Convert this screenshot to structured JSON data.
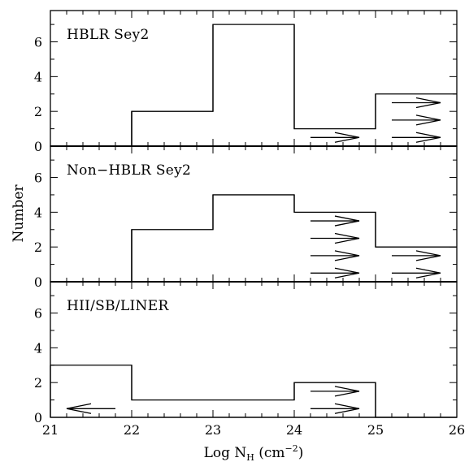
{
  "chart_data": [
    {
      "type": "bar",
      "label": "HBLR Sey2",
      "bins": [
        [
          21,
          22
        ],
        [
          22,
          23
        ],
        [
          23,
          24
        ],
        [
          24,
          25
        ],
        [
          25,
          26
        ]
      ],
      "values": [
        0,
        2,
        7,
        1,
        3
      ],
      "arrows": [
        {
          "bin": 3,
          "direction": "right",
          "y": [
            0.5
          ]
        },
        {
          "bin": 4,
          "direction": "right",
          "y": [
            0.5,
            1.5,
            2.5
          ]
        }
      ],
      "ylim": [
        0,
        7.8
      ],
      "yticks": [
        0,
        2,
        4,
        6
      ]
    },
    {
      "type": "bar",
      "label": "Non−HBLR Sey2",
      "bins": [
        [
          21,
          22
        ],
        [
          22,
          23
        ],
        [
          23,
          24
        ],
        [
          24,
          25
        ],
        [
          25,
          26
        ]
      ],
      "values": [
        0,
        3,
        5,
        4,
        2
      ],
      "arrows": [
        {
          "bin": 3,
          "direction": "right",
          "y": [
            0.5,
            1.5,
            2.5,
            3.5
          ]
        },
        {
          "bin": 4,
          "direction": "right",
          "y": [
            0.5,
            1.5
          ]
        }
      ],
      "ylim": [
        0,
        7.8
      ],
      "yticks": [
        0,
        2,
        4,
        6
      ]
    },
    {
      "type": "bar",
      "label": "HII/SB/LINER",
      "bins": [
        [
          21,
          22
        ],
        [
          22,
          23
        ],
        [
          23,
          24
        ],
        [
          24,
          25
        ],
        [
          25,
          26
        ]
      ],
      "values": [
        3,
        1,
        1,
        2,
        0
      ],
      "arrows": [
        {
          "bin": 0,
          "direction": "left",
          "y": [
            0.5
          ]
        },
        {
          "bin": 3,
          "direction": "right",
          "y": [
            0.5,
            1.5
          ]
        }
      ],
      "ylim": [
        0,
        7.8
      ],
      "yticks": [
        0,
        2,
        4,
        6
      ]
    }
  ],
  "axes": {
    "xlim": [
      21,
      26
    ],
    "xticks": [
      "21",
      "22",
      "23",
      "24",
      "25",
      "26"
    ],
    "xlabel": "Log N",
    "xlabel_sub": "H",
    "xlabel_unit_open": " (cm",
    "xlabel_unit_exp": "−2",
    "xlabel_unit_close": ")",
    "ylabel": "Number"
  }
}
